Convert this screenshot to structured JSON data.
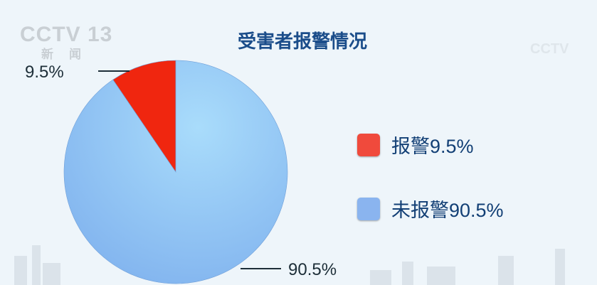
{
  "logo": {
    "text": "CCTV 13",
    "sub": "新闻"
  },
  "watermark": "CCTV",
  "chart_data": {
    "type": "pie",
    "title": "受害者报警情况",
    "slices": [
      {
        "label": "报警",
        "value": 9.5,
        "display": "9.5%",
        "legend": "报警9.5%",
        "color": "#f0260f"
      },
      {
        "label": "未报警",
        "value": 90.5,
        "display": "90.5%",
        "legend": "未报警90.5%",
        "color": "#8fc3f5"
      }
    ],
    "legend_colors": [
      "#f04a3c",
      "#8ab4ef"
    ],
    "legend_position": "right"
  }
}
